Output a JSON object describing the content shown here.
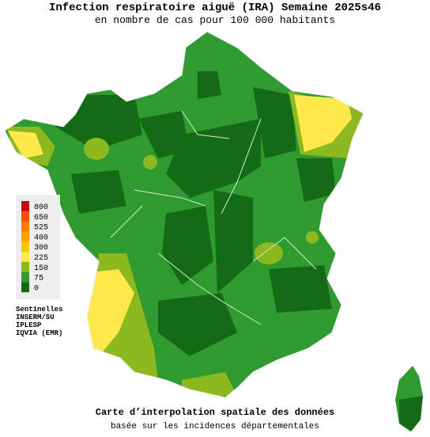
{
  "header": {
    "title": "Infection respiratoire aiguë (IRA) Semaine 2025s46",
    "subtitle": "en nombre de cas pour 100 000 habitants"
  },
  "legend": {
    "items": [
      {
        "label": "800",
        "color": "#c8001e"
      },
      {
        "label": "650",
        "color": "#ff4a00"
      },
      {
        "label": "525",
        "color": "#ff7a00"
      },
      {
        "label": "400",
        "color": "#ffa000"
      },
      {
        "label": "300",
        "color": "#ffc400"
      },
      {
        "label": "225",
        "color": "#ffe84a"
      },
      {
        "label": "150",
        "color": "#8cb820"
      },
      {
        "label": "75",
        "color": "#2f9a2f"
      },
      {
        "label": "0",
        "color": "#156b15"
      }
    ]
  },
  "sources": [
    "Sentinelles",
    "INSERM/SU",
    "IPLESP",
    "IQVIA (EMR)"
  ],
  "footer": {
    "title": "Carte d’interpolation spatiale des données",
    "subtitle": "basée sur les incidences départementales"
  }
}
